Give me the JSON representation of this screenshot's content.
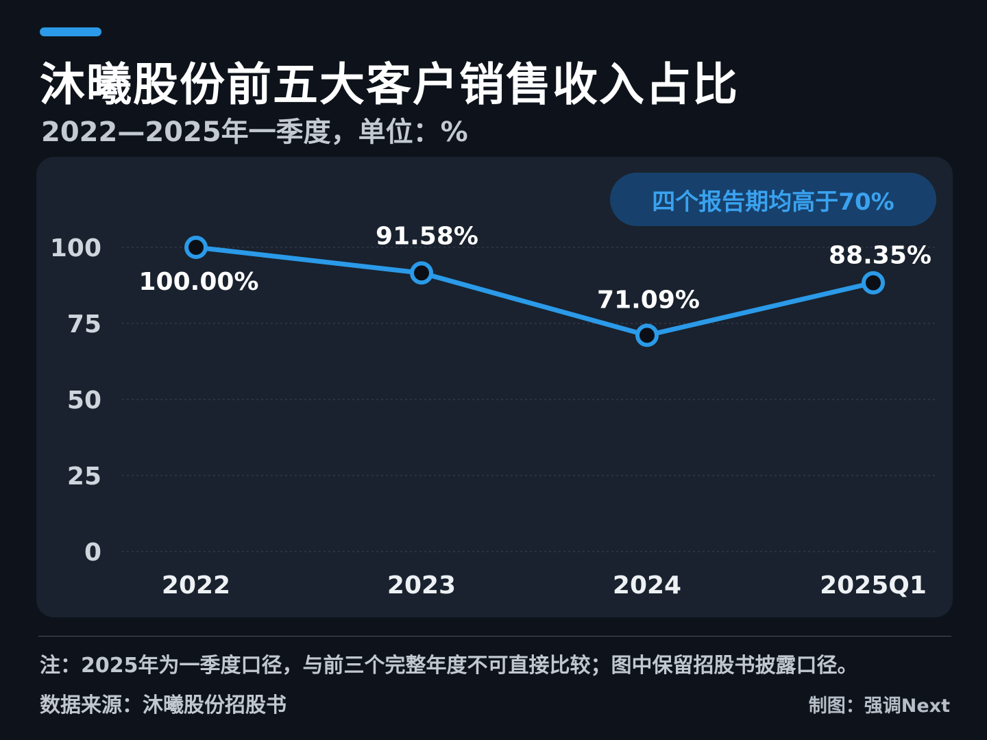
{
  "header": {
    "title": "沐曦股份前五大客户销售收入占比",
    "subtitle": "2022—2025年一季度，单位：%"
  },
  "callout": "四个报告期均高于70%",
  "colors": {
    "background": "#0e131b",
    "panel": "#19222e",
    "accent": "#2b9ae8",
    "line": "#2b9ae8",
    "callout_bg": "#17416c",
    "callout_text": "#3aa2f0"
  },
  "chart_data": {
    "type": "line",
    "title": "沐曦股份前五大客户销售收入占比",
    "subtitle": "2022—2025年一季度，单位：%",
    "categories": [
      "2022",
      "2023",
      "2024",
      "2025Q1"
    ],
    "series": [
      {
        "values": [
          100.0,
          91.58,
          71.09,
          88.35
        ]
      }
    ],
    "data_labels": [
      "100.00%",
      "91.58%",
      "71.09%",
      "88.35%"
    ],
    "yticks": [
      0,
      25,
      50,
      75,
      100
    ],
    "ylim": [
      0,
      100
    ],
    "grid": true,
    "legend": "none"
  },
  "footer": {
    "note": "注：2025年为一季度口径，与前三个完整年度不可直接比较；图中保留招股书披露口径。",
    "source": "数据来源：沐曦股份招股书",
    "credit": "制图：强调Next"
  }
}
